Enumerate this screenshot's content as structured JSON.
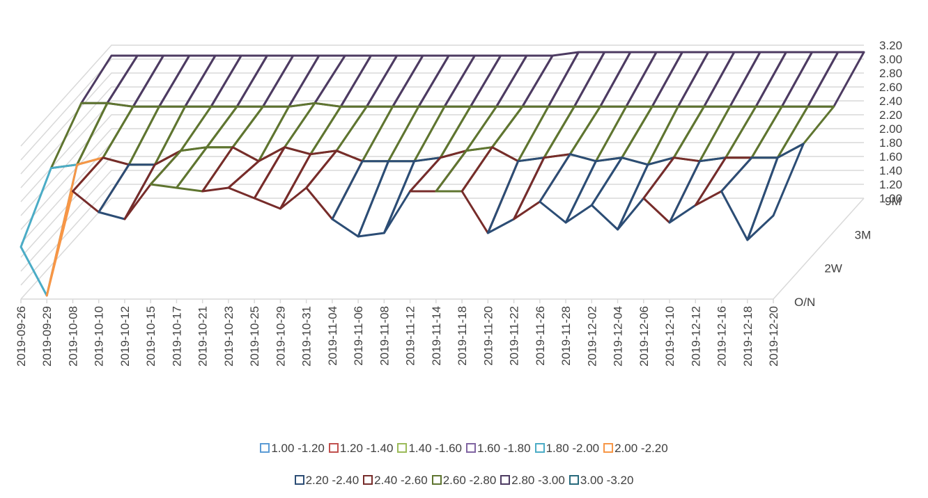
{
  "chart_data": {
    "type": "surface-3d-wireframe",
    "title": "",
    "x_labels": [
      "2019-09-26",
      "2019-09-29",
      "2019-10-08",
      "2019-10-10",
      "2019-10-12",
      "2019-10-15",
      "2019-10-17",
      "2019-10-21",
      "2019-10-23",
      "2019-10-25",
      "2019-10-29",
      "2019-10-31",
      "2019-11-04",
      "2019-11-06",
      "2019-11-08",
      "2019-11-12",
      "2019-11-14",
      "2019-11-18",
      "2019-11-20",
      "2019-11-22",
      "2019-11-26",
      "2019-11-28",
      "2019-12-02",
      "2019-12-04",
      "2019-12-06",
      "2019-12-10",
      "2019-12-12",
      "2019-12-16",
      "2019-12-18",
      "2019-12-20"
    ],
    "depth_labels": [
      "O/N",
      "2W",
      "3M",
      "9M"
    ],
    "z_ticks": [
      "1.00",
      "1.20",
      "1.40",
      "1.60",
      "1.80",
      "2.00",
      "2.20",
      "2.40",
      "2.60",
      "2.80",
      "3.00",
      "3.20"
    ],
    "z_range": [
      1.0,
      3.2
    ],
    "bands": [
      {
        "name": "1.00 -1.20",
        "color": "#5b9bd5"
      },
      {
        "name": "1.20 -1.40",
        "color": "#c0504d"
      },
      {
        "name": "1.40 -1.60",
        "color": "#9bbb59"
      },
      {
        "name": "1.60 -1.80",
        "color": "#8064a2"
      },
      {
        "name": "1.80 -2.00",
        "color": "#4bacc6"
      },
      {
        "name": "2.00 -2.20",
        "color": "#f79646"
      },
      {
        "name": "2.20 -2.40",
        "color": "#2c4d75"
      },
      {
        "name": "2.40 -2.60",
        "color": "#772c2a"
      },
      {
        "name": "2.60 -2.80",
        "color": "#5f7530"
      },
      {
        "name": "2.80 -3.00",
        "color": "#4d3b62"
      },
      {
        "name": "3.00 -3.20",
        "color": "#276a7c"
      }
    ],
    "legend_rows": [
      [
        0,
        1,
        2,
        3,
        4,
        5
      ],
      [
        6,
        7,
        8,
        9,
        10
      ]
    ],
    "series_by_tenor": [
      {
        "tenor": "O/N",
        "values": [
          1.75,
          1.05,
          2.55,
          2.25,
          2.15,
          2.65,
          2.6,
          2.55,
          2.6,
          2.45,
          2.3,
          2.6,
          2.15,
          1.9,
          1.95,
          2.55,
          2.55,
          2.55,
          1.95,
          2.15,
          2.4,
          2.1,
          2.35,
          2.0,
          2.45,
          2.1,
          2.35,
          2.55,
          1.85,
          2.2
        ]
      },
      {
        "tenor": "2W",
        "values": [
          2.4,
          2.45,
          2.55,
          2.45,
          2.45,
          2.65,
          2.7,
          2.7,
          2.5,
          2.7,
          2.6,
          2.65,
          2.5,
          2.5,
          2.5,
          2.55,
          2.65,
          2.7,
          2.5,
          2.55,
          2.6,
          2.5,
          2.55,
          2.45,
          2.55,
          2.5,
          2.55,
          2.55,
          2.55,
          2.75
        ]
      },
      {
        "tenor": "3M",
        "values": [
          2.85,
          2.85,
          2.8,
          2.8,
          2.8,
          2.8,
          2.8,
          2.8,
          2.8,
          2.85,
          2.8,
          2.8,
          2.8,
          2.8,
          2.8,
          2.8,
          2.8,
          2.8,
          2.8,
          2.8,
          2.8,
          2.8,
          2.8,
          2.8,
          2.8,
          2.8,
          2.8,
          2.8,
          2.8,
          2.8
        ]
      },
      {
        "tenor": "9M",
        "values": [
          3.05,
          3.05,
          3.05,
          3.05,
          3.05,
          3.05,
          3.05,
          3.05,
          3.05,
          3.05,
          3.05,
          3.05,
          3.05,
          3.05,
          3.05,
          3.05,
          3.05,
          3.05,
          3.1,
          3.1,
          3.1,
          3.1,
          3.1,
          3.1,
          3.1,
          3.1,
          3.1,
          3.1,
          3.1,
          3.1
        ]
      }
    ]
  }
}
